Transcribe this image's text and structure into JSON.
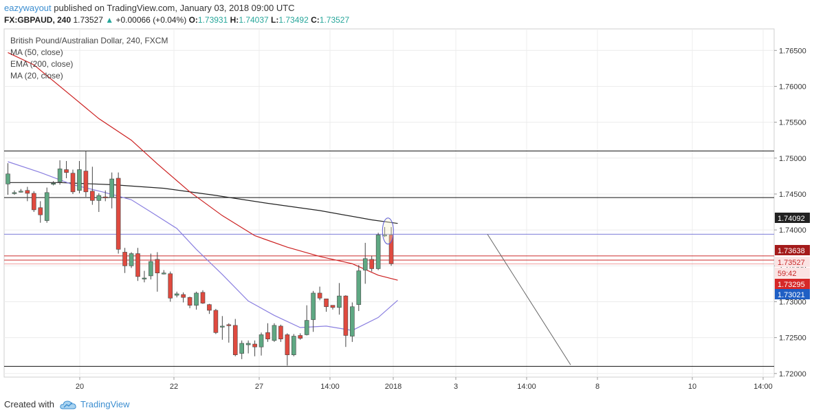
{
  "header": {
    "author": "eazywayout",
    "published_text": "published on TradingView.com, January 03, 2018 09:00 UTC",
    "symbol": "FX:GBPAUD,",
    "interval": "240",
    "last": "1.73527",
    "change": "+0.00066 (+0.04%)",
    "o_label": "O:",
    "o_val": "1.73931",
    "h_label": "H:",
    "h_val": "1.74037",
    "l_label": "L:",
    "l_val": "1.73492",
    "c_label": "C:",
    "c_val": "1.73527"
  },
  "indicators": {
    "title": "British Pound/Australian Dollar, 240, FXCM",
    "ma50": "MA (50, close)",
    "ema200": "EMA (200, close)",
    "ma20": "MA (20, close)"
  },
  "footer": {
    "created_with": "Created with",
    "brand": "TradingView"
  },
  "colors": {
    "up": "#5fa883",
    "down": "#e04a3f",
    "ema200": "#222222",
    "ma50": "#cc1f1f",
    "ma20": "#8a7fe0",
    "accent": "#3c8ed0"
  },
  "chart_data": {
    "type": "candlestick",
    "ylim": [
      1.7195,
      1.768
    ],
    "yticks": [
      "1.76500",
      "1.76000",
      "1.75500",
      "1.75000",
      "1.74500",
      "1.74000",
      "1.73500",
      "1.73000",
      "1.72500",
      "1.72000"
    ],
    "xticks": [
      "20",
      "22",
      "27",
      "14:00",
      "2018",
      "3",
      "14:00",
      "8",
      "10",
      "14:00"
    ],
    "price_labels": [
      {
        "text": "1.74092",
        "value": 1.74092,
        "kind": "ema200"
      },
      {
        "text": "1.73638",
        "value": 1.73638,
        "kind": "ma50"
      },
      {
        "text": "1.73527",
        "value": 1.73527,
        "kind": "last"
      },
      {
        "text": "59:42",
        "value": 1.734,
        "kind": "timer"
      },
      {
        "text": "1.73295",
        "value": 1.73295,
        "kind": "ma50b"
      },
      {
        "text": "1.73021",
        "value": 1.73021,
        "kind": "ma20"
      }
    ],
    "horizontal_levels": [
      1.751,
      1.7445,
      1.721
    ],
    "candles": [
      [
        1.7464,
        1.7478,
        1.7449,
        1.7493
      ],
      [
        1.7452,
        1.7452,
        1.7449,
        1.7455
      ],
      [
        1.7454,
        1.7454,
        1.7452,
        1.7457
      ],
      [
        1.7455,
        1.7451,
        1.744,
        1.746
      ],
      [
        1.7451,
        1.7428,
        1.7425,
        1.7454
      ],
      [
        1.7431,
        1.7421,
        1.741,
        1.744
      ],
      [
        1.7413,
        1.7452,
        1.741,
        1.7459
      ],
      [
        1.7465,
        1.7465,
        1.7462,
        1.7468
      ],
      [
        1.7467,
        1.7485,
        1.7463,
        1.7497
      ],
      [
        1.7484,
        1.748,
        1.7472,
        1.7496
      ],
      [
        1.7479,
        1.7453,
        1.745,
        1.7484
      ],
      [
        1.7455,
        1.7484,
        1.7451,
        1.7496
      ],
      [
        1.7482,
        1.7453,
        1.7446,
        1.751
      ],
      [
        1.7454,
        1.7441,
        1.7435,
        1.7488
      ],
      [
        1.7441,
        1.7448,
        1.7425,
        1.7451
      ],
      [
        1.7446,
        1.7445,
        1.744,
        1.7455
      ],
      [
        1.7445,
        1.7471,
        1.743,
        1.748
      ],
      [
        1.7472,
        1.7373,
        1.7367,
        1.748
      ],
      [
        1.7369,
        1.735,
        1.734,
        1.7375
      ],
      [
        1.735,
        1.7367,
        1.7347,
        1.7369
      ],
      [
        1.7367,
        1.7335,
        1.7329,
        1.7375
      ],
      [
        1.7333,
        1.7333,
        1.7327,
        1.7343
      ],
      [
        1.7336,
        1.7356,
        1.7331,
        1.7367
      ],
      [
        1.7359,
        1.734,
        1.7314,
        1.7369
      ],
      [
        1.734,
        1.734,
        1.7338,
        1.7344
      ],
      [
        1.7339,
        1.7305,
        1.73,
        1.7342
      ],
      [
        1.7309,
        1.7311,
        1.7306,
        1.7314
      ],
      [
        1.731,
        1.7306,
        1.7299,
        1.7313
      ],
      [
        1.7306,
        1.7295,
        1.7291,
        1.7307
      ],
      [
        1.7295,
        1.7312,
        1.7289,
        1.7314
      ],
      [
        1.7313,
        1.7298,
        1.7297,
        1.7316
      ],
      [
        1.7296,
        1.7288,
        1.7283,
        1.7297
      ],
      [
        1.7288,
        1.7257,
        1.7255,
        1.729
      ],
      [
        1.7266,
        1.7266,
        1.7247,
        1.728
      ],
      [
        1.7268,
        1.7267,
        1.7243,
        1.727
      ],
      [
        1.7267,
        1.7226,
        1.7224,
        1.7276
      ],
      [
        1.7228,
        1.7242,
        1.722,
        1.7246
      ],
      [
        1.724,
        1.7242,
        1.7228,
        1.7246
      ],
      [
        1.7241,
        1.7237,
        1.7224,
        1.7246
      ],
      [
        1.7237,
        1.7254,
        1.7225,
        1.7257
      ],
      [
        1.7257,
        1.7248,
        1.7244,
        1.727
      ],
      [
        1.7246,
        1.7267,
        1.7244,
        1.727
      ],
      [
        1.7266,
        1.7248,
        1.7244,
        1.7268
      ],
      [
        1.7254,
        1.7226,
        1.7211,
        1.7256
      ],
      [
        1.7226,
        1.7252,
        1.7224,
        1.7255
      ],
      [
        1.7253,
        1.7249,
        1.7247,
        1.7256
      ],
      [
        1.7254,
        1.7274,
        1.7253,
        1.7295
      ],
      [
        1.7275,
        1.7312,
        1.7258,
        1.7315
      ],
      [
        1.7312,
        1.7305,
        1.7302,
        1.7321
      ],
      [
        1.7304,
        1.7293,
        1.7286,
        1.7304
      ],
      [
        1.7295,
        1.7292,
        1.7289,
        1.7295
      ],
      [
        1.7292,
        1.7308,
        1.7282,
        1.7326
      ],
      [
        1.7308,
        1.7253,
        1.7237,
        1.7309
      ],
      [
        1.7252,
        1.7293,
        1.7244,
        1.7299
      ],
      [
        1.7296,
        1.7343,
        1.7287,
        1.7351
      ],
      [
        1.7344,
        1.736,
        1.7325,
        1.7382
      ],
      [
        1.7359,
        1.7346,
        1.7342,
        1.7364
      ],
      [
        1.7346,
        1.7393,
        1.7344,
        1.7396
      ],
      [
        1.7392,
        1.7393,
        1.739,
        1.7404
      ],
      [
        1.7393,
        1.7353,
        1.735,
        1.7404
      ]
    ],
    "ema200": [
      [
        0,
        1.7466
      ],
      [
        8,
        1.7466
      ],
      [
        16,
        1.7463
      ],
      [
        24,
        1.7458
      ],
      [
        32,
        1.7448
      ],
      [
        40,
        1.7437
      ],
      [
        48,
        1.7427
      ],
      [
        56,
        1.7414
      ],
      [
        60,
        1.7409
      ]
    ],
    "ma50": [
      [
        0,
        1.7647
      ],
      [
        4,
        1.763
      ],
      [
        10,
        1.7585
      ],
      [
        14,
        1.7555
      ],
      [
        19,
        1.7525
      ],
      [
        23,
        1.7492
      ],
      [
        28,
        1.7453
      ],
      [
        33,
        1.742
      ],
      [
        38,
        1.7392
      ],
      [
        43,
        1.7376
      ],
      [
        48,
        1.7363
      ],
      [
        53,
        1.7353
      ],
      [
        57,
        1.7337
      ],
      [
        60,
        1.733
      ]
    ],
    "ma20": [
      [
        0,
        1.7495
      ],
      [
        5,
        1.748
      ],
      [
        10,
        1.7463
      ],
      [
        15,
        1.7452
      ],
      [
        19,
        1.7442
      ],
      [
        22,
        1.7425
      ],
      [
        26,
        1.7402
      ],
      [
        29,
        1.7373
      ],
      [
        33,
        1.7338
      ],
      [
        37,
        1.7301
      ],
      [
        41,
        1.7281
      ],
      [
        45,
        1.7264
      ],
      [
        49,
        1.7266
      ],
      [
        53,
        1.726
      ],
      [
        57,
        1.7278
      ],
      [
        60,
        1.7302
      ]
    ],
    "projection": [
      [
        65,
        1.7394
      ],
      [
        76,
        1.7212
      ]
    ],
    "marked_level": 1.7394
  }
}
